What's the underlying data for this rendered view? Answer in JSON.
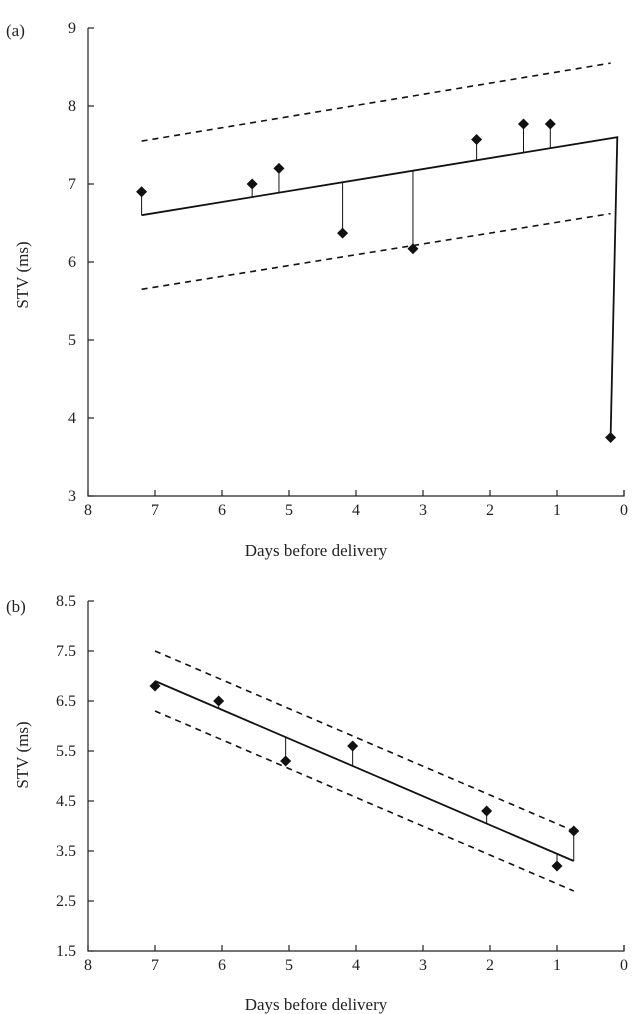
{
  "chart_data": [
    {
      "type": "scatter",
      "panel_label": "(a)",
      "xlabel": "Days before delivery",
      "ylabel": "STV (ms)",
      "xlim": [
        8,
        0
      ],
      "ylim": [
        3,
        9
      ],
      "xticks": [
        "8",
        "7",
        "6",
        "5",
        "4",
        "3",
        "2",
        "1",
        "0"
      ],
      "yticks": [
        "3",
        "4",
        "5",
        "6",
        "7",
        "8",
        "9"
      ],
      "points": [
        {
          "x": 7.2,
          "y": 6.9
        },
        {
          "x": 5.55,
          "y": 7.0
        },
        {
          "x": 5.15,
          "y": 7.2
        },
        {
          "x": 4.2,
          "y": 6.37
        },
        {
          "x": 3.15,
          "y": 6.17
        },
        {
          "x": 2.2,
          "y": 7.57
        },
        {
          "x": 1.5,
          "y": 7.77
        },
        {
          "x": 1.1,
          "y": 7.77
        },
        {
          "x": 0.2,
          "y": 3.75
        }
      ],
      "fit_line": {
        "x": [
          7.2,
          0.1
        ],
        "y": [
          6.6,
          7.6
        ]
      },
      "fit_drop_to": {
        "x": 0.2,
        "y": 3.75
      },
      "upper_band": {
        "x": [
          7.2,
          0.2
        ],
        "y": [
          7.55,
          8.55
        ]
      },
      "lower_band": {
        "x": [
          7.2,
          0.2
        ],
        "y": [
          5.65,
          6.62
        ]
      }
    },
    {
      "type": "scatter",
      "panel_label": "(b)",
      "xlabel": "Days before delivery",
      "ylabel": "STV (ms)",
      "xlim": [
        8,
        0
      ],
      "ylim": [
        1.5,
        8.5
      ],
      "xticks": [
        "8",
        "7",
        "6",
        "5",
        "4",
        "3",
        "2",
        "1",
        "0"
      ],
      "yticks": [
        "1.5",
        "2.5",
        "3.5",
        "4.5",
        "5.5",
        "6.5",
        "7.5",
        "8.5"
      ],
      "points": [
        {
          "x": 7.0,
          "y": 6.8
        },
        {
          "x": 6.05,
          "y": 6.5
        },
        {
          "x": 5.05,
          "y": 5.3
        },
        {
          "x": 4.05,
          "y": 5.6
        },
        {
          "x": 2.05,
          "y": 4.3
        },
        {
          "x": 1.0,
          "y": 3.2
        },
        {
          "x": 0.75,
          "y": 3.9
        }
      ],
      "fit_line": {
        "x": [
          7.0,
          0.75
        ],
        "y": [
          6.9,
          3.3
        ]
      },
      "upper_band": {
        "x": [
          7.0,
          0.75
        ],
        "y": [
          7.5,
          3.9
        ]
      },
      "lower_band": {
        "x": [
          7.0,
          0.75
        ],
        "y": [
          6.3,
          2.7
        ]
      }
    }
  ]
}
